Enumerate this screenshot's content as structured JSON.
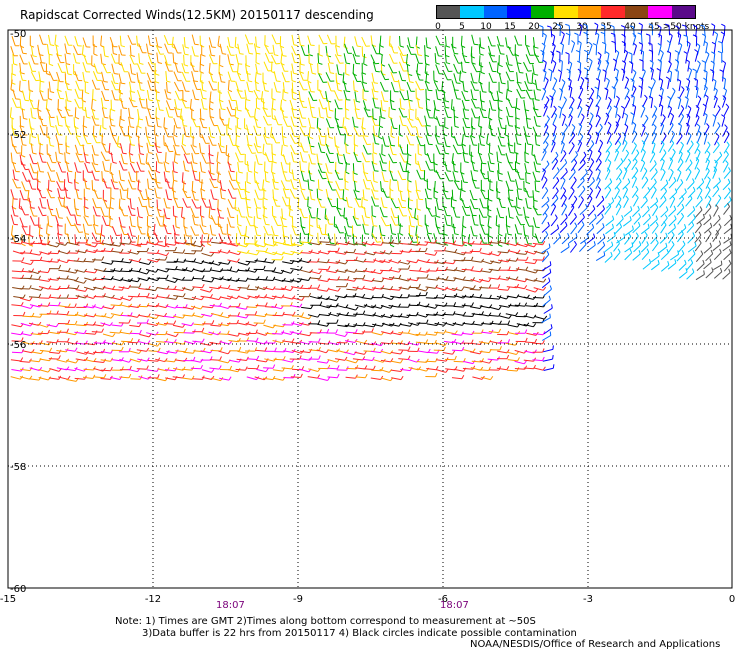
{
  "title": "Rapidscat Corrected Winds(12.5KM) 20150117 descending",
  "legend": {
    "labels": [
      "0",
      "5",
      "10",
      "15",
      "20",
      "25",
      "30",
      "35",
      "40",
      "45",
      ">50 knots"
    ],
    "colors": [
      "#555555",
      "#00c8ff",
      "#0064ff",
      "#0000ff",
      "#00b000",
      "#ffe000",
      "#ff9900",
      "#ff2a2a",
      "#8b4513",
      "#ff00ff",
      "#5a0a8a"
    ]
  },
  "axes": {
    "lon_ticks": [
      "-15",
      "-12",
      "-9",
      "-6",
      "-3",
      "0"
    ],
    "lat_ticks": [
      "-50",
      "-52",
      "-54",
      "-56",
      "-58",
      "-60"
    ]
  },
  "times": [
    "18:07",
    "18:07"
  ],
  "notes": {
    "line1": "Note: 1) Times are GMT 2)Times along bottom correspond to measurement at ~50S",
    "line2": "3)Data buffer is 22 hrs from 20150117 4) Black circles indicate possible contamination",
    "credit": "NOAA/NESDIS/Office of Research and Applications"
  }
}
